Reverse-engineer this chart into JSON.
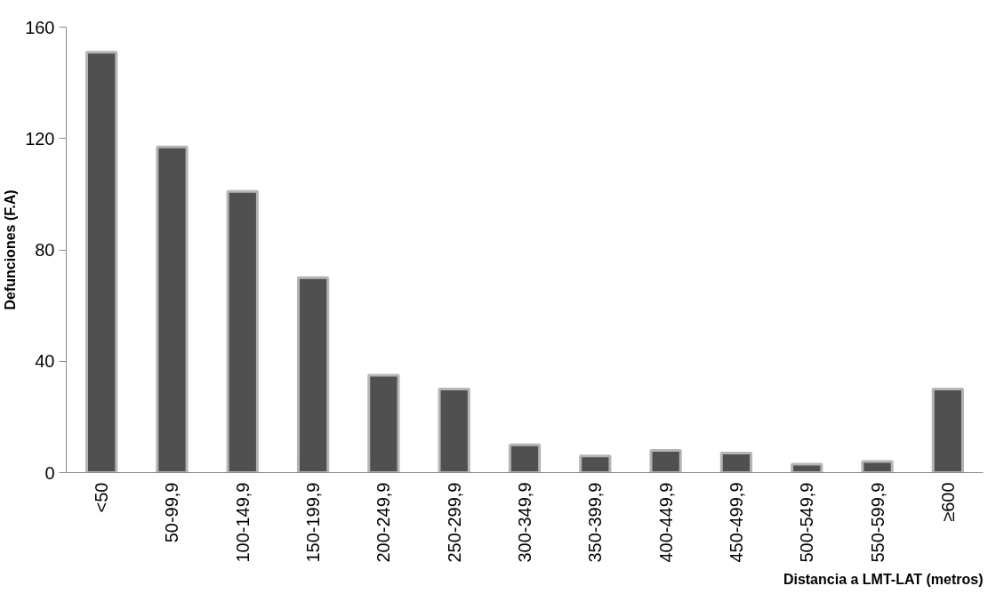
{
  "chart_data": {
    "type": "bar",
    "xlabel": "Distancia a LMT-LAT (metros)",
    "ylabel": "Defunciones (F.A)",
    "categories": [
      "<50",
      "50-99,9",
      "100-149,9",
      "150-199,9",
      "200-249,9",
      "250-299,9",
      "300-349,9",
      "350-399,9",
      "400-449,9",
      "450-499,9",
      "500-549,9",
      "550-599,9",
      "≥600"
    ],
    "values": [
      151,
      117,
      101,
      70,
      35,
      30,
      10,
      6,
      8,
      7,
      3,
      4,
      30
    ],
    "color": "#505050",
    "ylim": [
      0,
      160
    ],
    "yticks": [
      0,
      40,
      80,
      120,
      160
    ],
    "grid": false
  }
}
